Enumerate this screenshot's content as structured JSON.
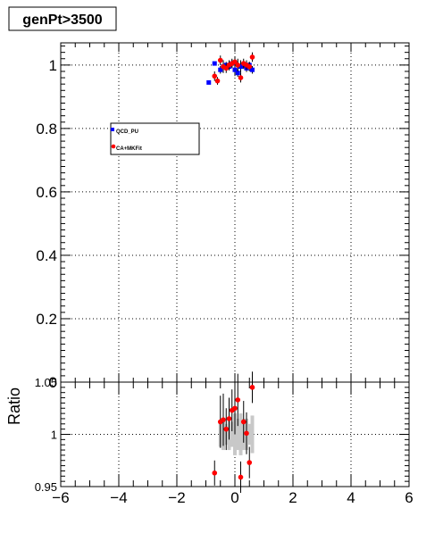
{
  "title": "genPt>3500",
  "legend": [
    {
      "label": "QCD_PU",
      "color": "#0000ff",
      "marker": "square"
    },
    {
      "label": "CA+MKFit",
      "color": "#ff0000",
      "marker": "circle"
    }
  ],
  "top_panel": {
    "y_ticks": [
      "0",
      "0.2",
      "0.4",
      "0.6",
      "0.8",
      "1"
    ]
  },
  "bottom_panel": {
    "y_title": "Ratio",
    "y_ticks": [
      "0.95",
      "1",
      "1.05"
    ],
    "x_ticks": [
      "−6",
      "−4",
      "−2",
      "0",
      "2",
      "4",
      "6"
    ]
  },
  "chart_data": [
    {
      "type": "scatter",
      "panel": "main",
      "title": "genPt>3500",
      "xlim": [
        -6,
        6
      ],
      "ylim": [
        0,
        1.07
      ],
      "grid": true,
      "legend_position": "upper-left",
      "series": [
        {
          "name": "QCD_PU",
          "color": "#0000ff",
          "marker": "square",
          "points": [
            {
              "x": -0.9,
              "y": 0.945,
              "err": 0.0
            },
            {
              "x": -0.7,
              "y": 1.005,
              "err": 0.0
            },
            {
              "x": -0.5,
              "y": 0.985,
              "err": 0.012
            },
            {
              "x": -0.4,
              "y": 0.995,
              "err": 0.012
            },
            {
              "x": -0.3,
              "y": 1.0,
              "err": 0.01
            },
            {
              "x": -0.2,
              "y": 0.995,
              "err": 0.012
            },
            {
              "x": -0.1,
              "y": 1.005,
              "err": 0.012
            },
            {
              "x": 0.0,
              "y": 0.985,
              "err": 0.02
            },
            {
              "x": 0.1,
              "y": 0.975,
              "err": 0.012
            },
            {
              "x": 0.2,
              "y": 0.995,
              "err": 0.02
            },
            {
              "x": 0.3,
              "y": 1.0,
              "err": 0.012
            },
            {
              "x": 0.4,
              "y": 0.99,
              "err": 0.012
            },
            {
              "x": 0.5,
              "y": 1.0,
              "err": 0.01
            },
            {
              "x": 0.6,
              "y": 0.985,
              "err": 0.012
            }
          ]
        },
        {
          "name": "CA+MKFit",
          "color": "#ff0000",
          "marker": "circle",
          "points": [
            {
              "x": -0.7,
              "y": 0.965,
              "err": 0.015
            },
            {
              "x": -0.6,
              "y": 0.95,
              "err": 0.012
            },
            {
              "x": -0.5,
              "y": 1.015,
              "err": 0.015
            },
            {
              "x": -0.4,
              "y": 0.995,
              "err": 0.02
            },
            {
              "x": -0.3,
              "y": 0.99,
              "err": 0.015
            },
            {
              "x": -0.2,
              "y": 1.0,
              "err": 0.015
            },
            {
              "x": -0.1,
              "y": 1.005,
              "err": 0.015
            },
            {
              "x": 0.0,
              "y": 1.01,
              "err": 0.015
            },
            {
              "x": 0.1,
              "y": 1.0,
              "err": 0.02
            },
            {
              "x": 0.2,
              "y": 0.96,
              "err": 0.015
            },
            {
              "x": 0.3,
              "y": 1.005,
              "err": 0.015
            },
            {
              "x": 0.4,
              "y": 1.0,
              "err": 0.015
            },
            {
              "x": 0.5,
              "y": 0.995,
              "err": 0.015
            },
            {
              "x": 0.6,
              "y": 1.025,
              "err": 0.015
            }
          ]
        }
      ]
    },
    {
      "type": "scatter",
      "panel": "ratio",
      "ylabel": "Ratio",
      "xlim": [
        -6,
        6
      ],
      "ylim": [
        0.95,
        1.05
      ],
      "grid": true,
      "series": [
        {
          "name": "ratio",
          "color": "#ff0000",
          "marker": "circle",
          "points": [
            {
              "x": -0.7,
              "y": 0.963,
              "err": 0.012
            },
            {
              "x": -0.5,
              "y": 1.012,
              "err": 0.025
            },
            {
              "x": -0.4,
              "y": 1.014,
              "err": 0.025
            },
            {
              "x": -0.3,
              "y": 1.005,
              "err": 0.02
            },
            {
              "x": -0.2,
              "y": 1.015,
              "err": 0.02
            },
            {
              "x": -0.1,
              "y": 1.023,
              "err": 0.02
            },
            {
              "x": 0.0,
              "y": 1.025,
              "err": 0.025
            },
            {
              "x": 0.1,
              "y": 1.033,
              "err": 0.025
            },
            {
              "x": 0.2,
              "y": 0.959,
              "err": 0.015
            },
            {
              "x": 0.3,
              "y": 1.012,
              "err": 0.02
            },
            {
              "x": 0.4,
              "y": 1.001,
              "err": 0.02
            },
            {
              "x": 0.5,
              "y": 0.973,
              "err": 0.015
            },
            {
              "x": 0.6,
              "y": 1.045,
              "err": 0.015
            }
          ]
        },
        {
          "name": "stat_band",
          "color": "#c8c8c8",
          "marker": "none",
          "points": [
            {
              "x": -0.5,
              "y": 1.0,
              "err": 0.012
            },
            {
              "x": -0.4,
              "y": 1.0,
              "err": 0.015
            },
            {
              "x": -0.3,
              "y": 1.0,
              "err": 0.01
            },
            {
              "x": -0.2,
              "y": 1.0,
              "err": 0.015
            },
            {
              "x": -0.1,
              "y": 1.0,
              "err": 0.012
            },
            {
              "x": 0.0,
              "y": 1.0,
              "err": 0.02
            },
            {
              "x": 0.1,
              "y": 1.0,
              "err": 0.015
            },
            {
              "x": 0.2,
              "y": 1.0,
              "err": 0.02
            },
            {
              "x": 0.3,
              "y": 1.0,
              "err": 0.015
            },
            {
              "x": 0.4,
              "y": 1.0,
              "err": 0.015
            },
            {
              "x": 0.5,
              "y": 1.0,
              "err": 0.01
            },
            {
              "x": 0.6,
              "y": 1.0,
              "err": 0.018
            }
          ]
        }
      ]
    }
  ]
}
